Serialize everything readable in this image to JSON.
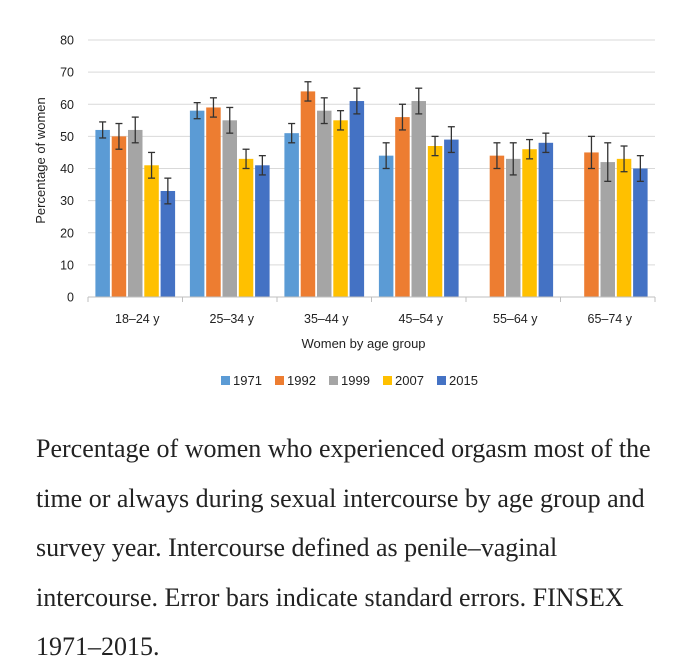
{
  "chart_data": {
    "type": "bar",
    "categories": [
      "18–24 y",
      "25–34 y",
      "35–44 y",
      "45–54 y",
      "55–64 y",
      "65–74 y"
    ],
    "series": [
      {
        "name": "1971",
        "color": "#5b9bd5",
        "values": [
          52,
          58,
          51,
          44,
          null,
          null
        ],
        "errors": [
          2.5,
          2.5,
          3,
          4,
          null,
          null
        ]
      },
      {
        "name": "1992",
        "color": "#ed7d31",
        "values": [
          50,
          59,
          64,
          56,
          44,
          45
        ],
        "errors": [
          4,
          3,
          3,
          4,
          4,
          5
        ]
      },
      {
        "name": "1999",
        "color": "#a5a5a5",
        "values": [
          52,
          55,
          58,
          61,
          43,
          42
        ],
        "errors": [
          4,
          4,
          4,
          4,
          5,
          6
        ]
      },
      {
        "name": "2007",
        "color": "#ffc000",
        "values": [
          41,
          43,
          55,
          47,
          46,
          43
        ],
        "errors": [
          4,
          3,
          3,
          3,
          3,
          4
        ]
      },
      {
        "name": "2015",
        "color": "#4472c4",
        "values": [
          33,
          41,
          61,
          49,
          48,
          40
        ],
        "errors": [
          4,
          3,
          4,
          4,
          3,
          4
        ]
      }
    ],
    "ylabel": "Percentage of women",
    "xlabel": "Women by age group",
    "ylim": [
      0,
      80
    ],
    "yticks": [
      0,
      10,
      20,
      30,
      40,
      50,
      60,
      70,
      80
    ],
    "grid": true,
    "legend": "bottom"
  },
  "caption": "Percentage of women who experienced orgasm most of the time or always during sexual intercourse by age group and survey year. Intercourse defined as penile–vaginal intercourse. Error bars indicate standard errors. FINSEX 1971–2015."
}
